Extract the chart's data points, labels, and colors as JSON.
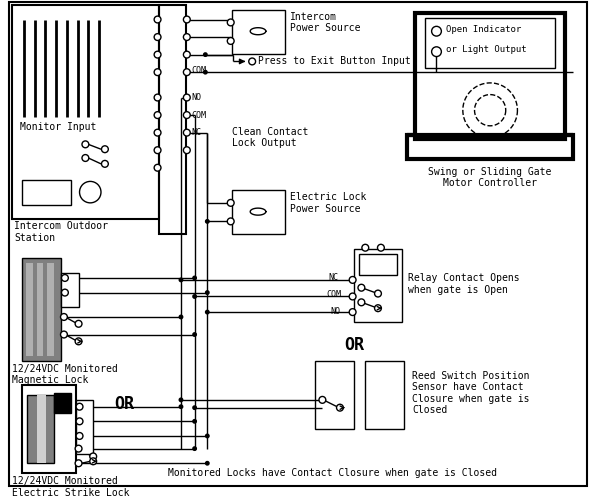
{
  "bg_color": "#ffffff",
  "line_color": "#000000",
  "labels": {
    "monitor_input": "Monitor Input",
    "intercom_outdoor": "Intercom Outdoor\nStation",
    "intercom_ps": "Intercom\nPower Source",
    "press_exit": "Press to Exit Button Input",
    "clean_contact": "Clean Contact\nLock Output",
    "electric_lock_ps": "Electric Lock\nPower Source",
    "magnetic_lock": "12/24VDC Monitored\nMagnetic Lock",
    "electric_strike": "12/24VDC Monitored\nElectric Strike Lock",
    "swing_gate": "Swing or Sliding Gate\nMotor Controller",
    "open_indicator_1": "Open Indicator",
    "open_indicator_2": "or Light Output",
    "relay_contact": "Relay Contact Opens\nwhen gate is Open",
    "reed_switch": "Reed Switch Position\nSensor have Contact\nClosure when gate is\nClosed",
    "or1": "OR",
    "or2": "OR",
    "bottom_note": "Monitored Locks have Contact Closure when gate is Closed",
    "nc": "NC",
    "com_label": "COM",
    "no_label": "NO",
    "com2": "COM",
    "no2": "NO",
    "nc2": "NC",
    "com_top": "COM"
  }
}
